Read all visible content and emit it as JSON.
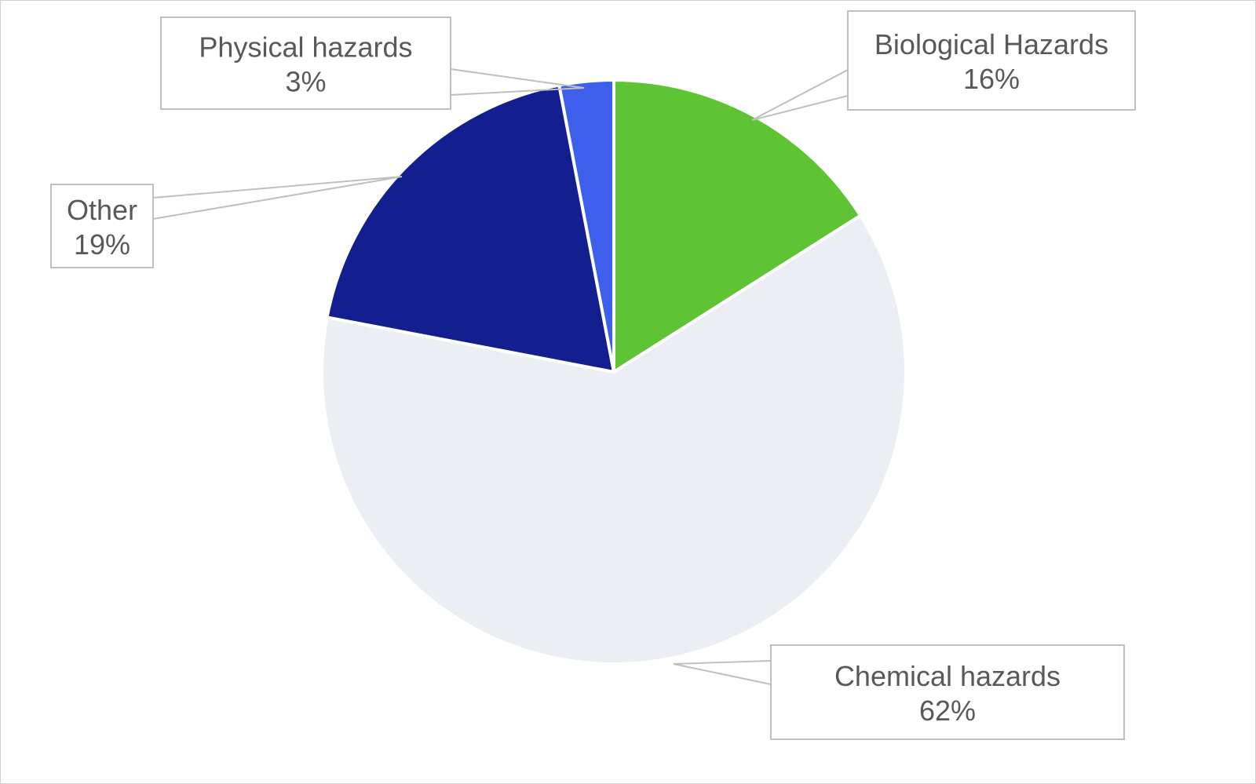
{
  "chart_data": {
    "type": "pie",
    "title": "",
    "start_angle_deg": 0,
    "direction": "clockwise",
    "slices": [
      {
        "label": "Biological Hazards",
        "value": 16,
        "value_text": "16%",
        "color": "#5fc433"
      },
      {
        "label": "Chemical hazards",
        "value": 62,
        "value_text": "62%",
        "color": "#ebeef3"
      },
      {
        "label": "Other",
        "value": 19,
        "value_text": "19%",
        "color": "#131f8f"
      },
      {
        "label": "Physical hazards",
        "value": 3,
        "value_text": "3%",
        "color": "#3e5fec"
      }
    ],
    "legend": "none",
    "data_labels": "callouts"
  }
}
